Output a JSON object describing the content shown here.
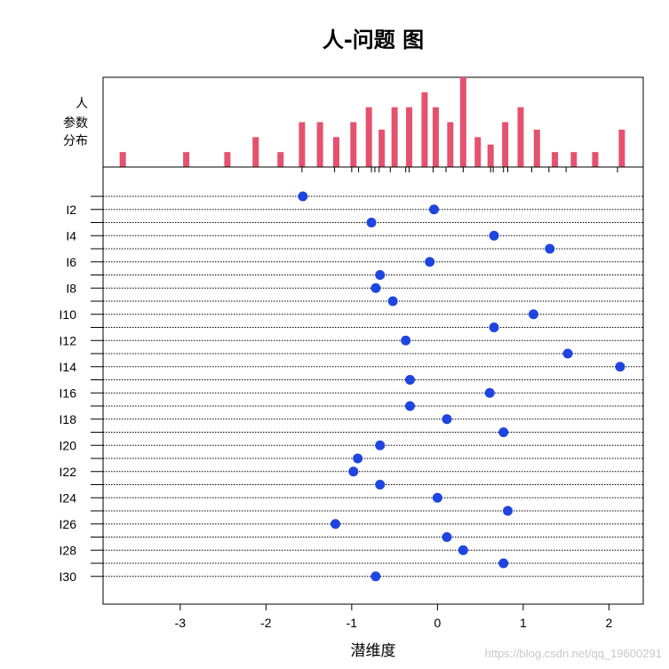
{
  "chart_data": [
    {
      "type": "bar",
      "role": "person-parameter-distribution",
      "ylabel_lines": [
        "人",
        "参数",
        "分布"
      ],
      "color": "#E5526E",
      "bars": [
        {
          "x": -3.67,
          "h": 1
        },
        {
          "x": -2.93,
          "h": 1
        },
        {
          "x": -2.45,
          "h": 1
        },
        {
          "x": -2.12,
          "h": 2
        },
        {
          "x": -1.83,
          "h": 1
        },
        {
          "x": -1.58,
          "h": 3
        },
        {
          "x": -1.37,
          "h": 3
        },
        {
          "x": -1.18,
          "h": 2
        },
        {
          "x": -0.98,
          "h": 3
        },
        {
          "x": -0.8,
          "h": 4
        },
        {
          "x": -0.65,
          "h": 2.5
        },
        {
          "x": -0.5,
          "h": 4
        },
        {
          "x": -0.33,
          "h": 4
        },
        {
          "x": -0.15,
          "h": 5
        },
        {
          "x": -0.02,
          "h": 4
        },
        {
          "x": 0.15,
          "h": 3
        },
        {
          "x": 0.3,
          "h": 6
        },
        {
          "x": 0.47,
          "h": 2
        },
        {
          "x": 0.62,
          "h": 1.5
        },
        {
          "x": 0.79,
          "h": 3
        },
        {
          "x": 0.97,
          "h": 4
        },
        {
          "x": 1.16,
          "h": 2.5
        },
        {
          "x": 1.37,
          "h": 1
        },
        {
          "x": 1.59,
          "h": 1
        },
        {
          "x": 1.84,
          "h": 1
        },
        {
          "x": 2.15,
          "h": 2.5
        }
      ],
      "threshold_ticks": [
        -1.58,
        -1.2,
        -1.0,
        -0.92,
        -0.77,
        -0.73,
        -0.68,
        -0.55,
        -0.37,
        -0.33,
        -0.05,
        0.1,
        0.3,
        0.62,
        0.65,
        0.77,
        0.82,
        1.1,
        1.3,
        1.5,
        2.1
      ]
    },
    {
      "type": "scatter",
      "title": "人-问题 图",
      "xlabel": "潜维度",
      "xlim": [
        -3.9,
        2.4
      ],
      "xticks": [
        -3,
        -2,
        -1,
        0,
        1,
        2
      ],
      "grid": "dotted horizontal lines per item",
      "color": "#1F45E0",
      "items": [
        {
          "label": "",
          "value": -1.57
        },
        {
          "label": "I2",
          "value": -0.04
        },
        {
          "label": "",
          "value": -0.77
        },
        {
          "label": "I4",
          "value": 0.66
        },
        {
          "label": "",
          "value": 1.31
        },
        {
          "label": "I6",
          "value": -0.09
        },
        {
          "label": "",
          "value": -0.67
        },
        {
          "label": "I8",
          "value": -0.72
        },
        {
          "label": "",
          "value": -0.52
        },
        {
          "label": "I10",
          "value": 1.12
        },
        {
          "label": "",
          "value": 0.66
        },
        {
          "label": "I12",
          "value": -0.37
        },
        {
          "label": "",
          "value": 1.52
        },
        {
          "label": "I14",
          "value": 2.13
        },
        {
          "label": "",
          "value": -0.32
        },
        {
          "label": "I16",
          "value": 0.61
        },
        {
          "label": "",
          "value": -0.32
        },
        {
          "label": "I18",
          "value": 0.11
        },
        {
          "label": "",
          "value": 0.77
        },
        {
          "label": "I20",
          "value": -0.67
        },
        {
          "label": "",
          "value": -0.93
        },
        {
          "label": "I22",
          "value": -0.98
        },
        {
          "label": "",
          "value": -0.67
        },
        {
          "label": "I24",
          "value": 0.0
        },
        {
          "label": "",
          "value": 0.82
        },
        {
          "label": "I26",
          "value": -1.19
        },
        {
          "label": "",
          "value": 0.11
        },
        {
          "label": "I28",
          "value": 0.3
        },
        {
          "label": "",
          "value": 0.77
        },
        {
          "label": "I30",
          "value": -0.72
        }
      ]
    }
  ],
  "watermark": "https://blog.csdn.net/qq_19600291"
}
